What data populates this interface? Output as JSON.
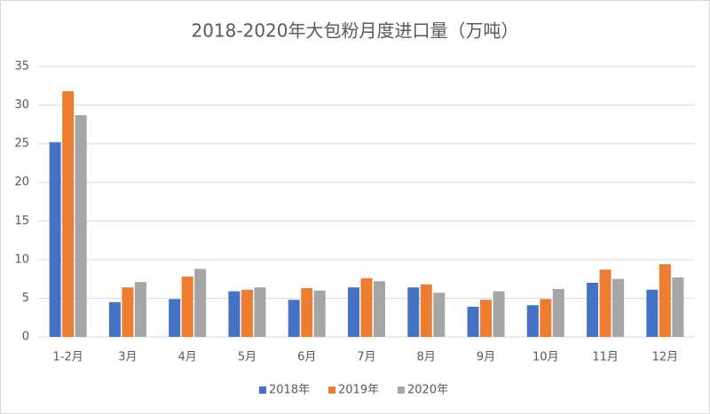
{
  "chart_data": {
    "type": "bar",
    "title": "2018-2020年大包粉月度进口量（万吨）",
    "categories": [
      "1-2月",
      "3月",
      "4月",
      "5月",
      "6月",
      "7月",
      "8月",
      "9月",
      "10月",
      "11月",
      "12月"
    ],
    "series": [
      {
        "name": "2018年",
        "color": "#4472c4",
        "values": [
          25.2,
          4.5,
          4.9,
          5.9,
          4.8,
          6.4,
          6.4,
          3.9,
          4.1,
          7.0,
          6.1
        ]
      },
      {
        "name": "2019年",
        "color": "#ed7d31",
        "values": [
          31.8,
          6.4,
          7.8,
          6.1,
          6.3,
          7.6,
          6.8,
          4.8,
          4.9,
          8.7,
          9.4
        ]
      },
      {
        "name": "2020年",
        "color": "#a5a5a5",
        "values": [
          28.7,
          7.1,
          8.8,
          6.4,
          6.0,
          7.2,
          5.7,
          5.9,
          6.2,
          7.5,
          7.7
        ]
      }
    ],
    "ylim": [
      0,
      35
    ],
    "yticks": [
      0,
      5,
      10,
      15,
      20,
      25,
      30,
      35
    ],
    "grid": true,
    "legend": "bottom"
  }
}
